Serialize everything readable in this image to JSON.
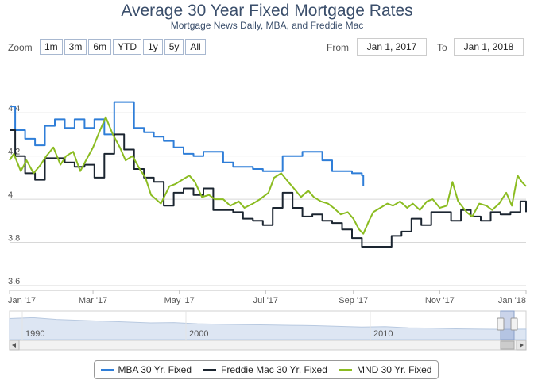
{
  "header": {
    "title": "Average 30 Year Fixed Mortgage Rates",
    "subtitle": "Mortgage News Daily, MBA, and Freddie Mac"
  },
  "toolbar": {
    "zoom_label": "Zoom",
    "zoom_buttons": [
      "1m",
      "3m",
      "6m",
      "YTD",
      "1y",
      "5y",
      "All"
    ],
    "from_label": "From",
    "from_value": "Jan 1, 2017",
    "to_label": "To",
    "to_value": "Jan 1, 2018"
  },
  "navigator": {
    "year_labels": [
      "1990",
      "2000",
      "2010"
    ]
  },
  "chart_data": {
    "type": "line",
    "title": "Average 30 Year Fixed Mortgage Rates",
    "subtitle": "Mortgage News Daily, MBA, and Freddie Mac",
    "x_range": [
      "2017-01-01",
      "2018-01-01"
    ],
    "ylim": [
      3.6,
      4.5
    ],
    "y_ticks": [
      3.6,
      3.8,
      4,
      4.2,
      4.4
    ],
    "x_ticks": [
      "Jan '17",
      "Mar '17",
      "May '17",
      "Jul '17",
      "Sep '17",
      "Nov '17",
      "Jan '18"
    ],
    "grid": true,
    "legend_position": "bottom",
    "series": [
      {
        "name": "MBA 30 Yr. Fixed",
        "color": "#2f7ed8",
        "step": true,
        "points": [
          [
            "2017-01-01",
            4.43
          ],
          [
            "2017-01-05",
            4.32
          ],
          [
            "2017-01-12",
            4.28
          ],
          [
            "2017-01-19",
            4.25
          ],
          [
            "2017-01-26",
            4.34
          ],
          [
            "2017-02-02",
            4.37
          ],
          [
            "2017-02-09",
            4.33
          ],
          [
            "2017-02-16",
            4.37
          ],
          [
            "2017-02-23",
            4.33
          ],
          [
            "2017-03-02",
            4.37
          ],
          [
            "2017-03-09",
            4.3
          ],
          [
            "2017-03-16",
            4.45
          ],
          [
            "2017-03-30",
            4.33
          ],
          [
            "2017-04-06",
            4.31
          ],
          [
            "2017-04-13",
            4.29
          ],
          [
            "2017-04-20",
            4.27
          ],
          [
            "2017-04-27",
            4.24
          ],
          [
            "2017-05-04",
            4.21
          ],
          [
            "2017-05-11",
            4.2
          ],
          [
            "2017-05-18",
            4.22
          ],
          [
            "2017-05-25",
            4.22
          ],
          [
            "2017-06-01",
            4.17
          ],
          [
            "2017-06-08",
            4.15
          ],
          [
            "2017-06-15",
            4.15
          ],
          [
            "2017-06-22",
            4.14
          ],
          [
            "2017-06-29",
            4.13
          ],
          [
            "2017-07-06",
            4.13
          ],
          [
            "2017-07-13",
            4.2
          ],
          [
            "2017-07-27",
            4.22
          ],
          [
            "2017-08-10",
            4.18
          ],
          [
            "2017-08-17",
            4.13
          ],
          [
            "2017-08-31",
            4.12
          ],
          [
            "2017-09-07",
            4.11
          ],
          [
            "2017-09-08",
            4.06
          ]
        ]
      },
      {
        "name": "Freddie Mac 30 Yr. Fixed",
        "color": "#1b2530",
        "step": true,
        "points": [
          [
            "2017-01-01",
            4.32
          ],
          [
            "2017-01-05",
            4.2
          ],
          [
            "2017-01-12",
            4.12
          ],
          [
            "2017-01-19",
            4.09
          ],
          [
            "2017-01-26",
            4.19
          ],
          [
            "2017-02-02",
            4.19
          ],
          [
            "2017-02-09",
            4.17
          ],
          [
            "2017-02-16",
            4.15
          ],
          [
            "2017-02-23",
            4.16
          ],
          [
            "2017-03-02",
            4.1
          ],
          [
            "2017-03-09",
            4.21
          ],
          [
            "2017-03-16",
            4.3
          ],
          [
            "2017-03-23",
            4.23
          ],
          [
            "2017-03-30",
            4.14
          ],
          [
            "2017-04-06",
            4.1
          ],
          [
            "2017-04-13",
            4.08
          ],
          [
            "2017-04-20",
            3.97
          ],
          [
            "2017-04-27",
            4.03
          ],
          [
            "2017-05-04",
            4.05
          ],
          [
            "2017-05-11",
            4.02
          ],
          [
            "2017-05-18",
            4.05
          ],
          [
            "2017-05-25",
            3.95
          ],
          [
            "2017-06-01",
            3.95
          ],
          [
            "2017-06-08",
            3.94
          ],
          [
            "2017-06-15",
            3.91
          ],
          [
            "2017-06-22",
            3.9
          ],
          [
            "2017-06-29",
            3.88
          ],
          [
            "2017-07-06",
            3.96
          ],
          [
            "2017-07-13",
            4.03
          ],
          [
            "2017-07-20",
            3.96
          ],
          [
            "2017-07-27",
            3.92
          ],
          [
            "2017-08-03",
            3.93
          ],
          [
            "2017-08-10",
            3.9
          ],
          [
            "2017-08-17",
            3.89
          ],
          [
            "2017-08-24",
            3.86
          ],
          [
            "2017-08-31",
            3.82
          ],
          [
            "2017-09-07",
            3.78
          ],
          [
            "2017-09-14",
            3.78
          ],
          [
            "2017-09-21",
            3.78
          ],
          [
            "2017-09-28",
            3.83
          ],
          [
            "2017-10-05",
            3.85
          ],
          [
            "2017-10-12",
            3.91
          ],
          [
            "2017-10-19",
            3.88
          ],
          [
            "2017-10-26",
            3.94
          ],
          [
            "2017-11-02",
            3.94
          ],
          [
            "2017-11-09",
            3.9
          ],
          [
            "2017-11-16",
            3.95
          ],
          [
            "2017-11-23",
            3.92
          ],
          [
            "2017-11-30",
            3.9
          ],
          [
            "2017-12-07",
            3.94
          ],
          [
            "2017-12-14",
            3.93
          ],
          [
            "2017-12-21",
            3.94
          ],
          [
            "2017-12-28",
            3.99
          ],
          [
            "2018-01-01",
            3.94
          ]
        ]
      },
      {
        "name": "MND 30 Yr. Fixed",
        "color": "#8bbc21",
        "step": false,
        "points": [
          [
            "2017-01-01",
            4.18
          ],
          [
            "2017-01-04",
            4.21
          ],
          [
            "2017-01-09",
            4.13
          ],
          [
            "2017-01-13",
            4.18
          ],
          [
            "2017-01-18",
            4.12
          ],
          [
            "2017-01-23",
            4.16
          ],
          [
            "2017-01-27",
            4.2
          ],
          [
            "2017-02-01",
            4.24
          ],
          [
            "2017-02-06",
            4.16
          ],
          [
            "2017-02-10",
            4.2
          ],
          [
            "2017-02-15",
            4.22
          ],
          [
            "2017-02-20",
            4.13
          ],
          [
            "2017-02-24",
            4.18
          ],
          [
            "2017-03-01",
            4.24
          ],
          [
            "2017-03-06",
            4.32
          ],
          [
            "2017-03-10",
            4.38
          ],
          [
            "2017-03-15",
            4.3
          ],
          [
            "2017-03-20",
            4.24
          ],
          [
            "2017-03-24",
            4.18
          ],
          [
            "2017-03-29",
            4.2
          ],
          [
            "2017-04-03",
            4.14
          ],
          [
            "2017-04-07",
            4.1
          ],
          [
            "2017-04-11",
            4.02
          ],
          [
            "2017-04-18",
            3.98
          ],
          [
            "2017-04-24",
            4.06
          ],
          [
            "2017-04-28",
            4.07
          ],
          [
            "2017-05-03",
            4.09
          ],
          [
            "2017-05-08",
            4.11
          ],
          [
            "2017-05-12",
            4.08
          ],
          [
            "2017-05-17",
            4.01
          ],
          [
            "2017-05-22",
            4.02
          ],
          [
            "2017-05-26",
            4.0
          ],
          [
            "2017-06-01",
            4.0
          ],
          [
            "2017-06-06",
            3.97
          ],
          [
            "2017-06-12",
            3.99
          ],
          [
            "2017-06-16",
            3.96
          ],
          [
            "2017-06-22",
            3.98
          ],
          [
            "2017-06-27",
            4.0
          ],
          [
            "2017-07-03",
            4.03
          ],
          [
            "2017-07-07",
            4.1
          ],
          [
            "2017-07-12",
            4.12
          ],
          [
            "2017-07-17",
            4.08
          ],
          [
            "2017-07-21",
            4.05
          ],
          [
            "2017-07-26",
            4.01
          ],
          [
            "2017-07-31",
            4.04
          ],
          [
            "2017-08-04",
            4.01
          ],
          [
            "2017-08-09",
            3.99
          ],
          [
            "2017-08-14",
            3.98
          ],
          [
            "2017-08-18",
            3.96
          ],
          [
            "2017-08-23",
            3.93
          ],
          [
            "2017-08-28",
            3.94
          ],
          [
            "2017-09-01",
            3.91
          ],
          [
            "2017-09-05",
            3.86
          ],
          [
            "2017-09-08",
            3.84
          ],
          [
            "2017-09-12",
            3.9
          ],
          [
            "2017-09-15",
            3.94
          ],
          [
            "2017-09-20",
            3.96
          ],
          [
            "2017-09-25",
            3.98
          ],
          [
            "2017-09-29",
            3.97
          ],
          [
            "2017-10-04",
            3.99
          ],
          [
            "2017-10-09",
            3.96
          ],
          [
            "2017-10-13",
            3.98
          ],
          [
            "2017-10-18",
            3.95
          ],
          [
            "2017-10-23",
            3.99
          ],
          [
            "2017-10-27",
            4.0
          ],
          [
            "2017-11-01",
            3.96
          ],
          [
            "2017-11-06",
            3.97
          ],
          [
            "2017-11-10",
            4.08
          ],
          [
            "2017-11-14",
            3.99
          ],
          [
            "2017-11-20",
            3.94
          ],
          [
            "2017-11-24",
            3.92
          ],
          [
            "2017-11-29",
            3.98
          ],
          [
            "2017-12-04",
            3.97
          ],
          [
            "2017-12-08",
            3.95
          ],
          [
            "2017-12-13",
            3.98
          ],
          [
            "2017-12-18",
            4.03
          ],
          [
            "2017-12-22",
            3.97
          ],
          [
            "2017-12-26",
            4.11
          ],
          [
            "2017-12-29",
            4.08
          ],
          [
            "2018-01-01",
            4.06
          ]
        ]
      }
    ]
  }
}
